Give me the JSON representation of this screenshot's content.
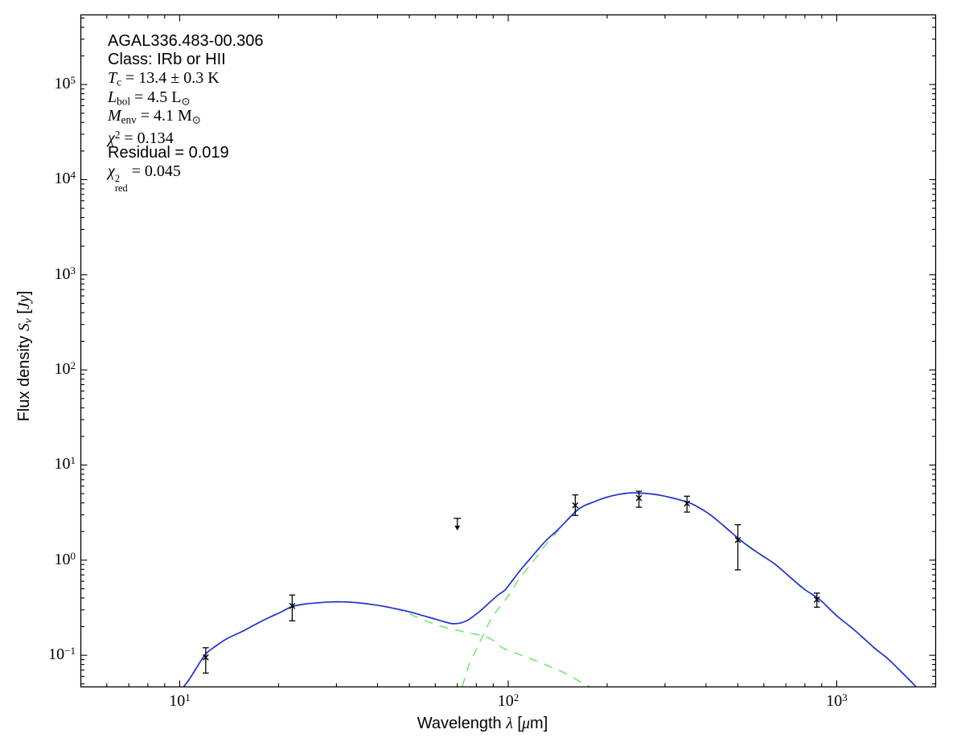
{
  "figure": {
    "background": "#ffffff",
    "frame_color": "#000000"
  },
  "colors": {
    "model_total": "#2130d2",
    "model_components": "#70e56e",
    "data_points": "#000000"
  },
  "annotation": {
    "lines": [
      {
        "name": "source-name",
        "segments": [
          {
            "t": "AGAL336.483-00.306",
            "f": "s"
          }
        ]
      },
      {
        "name": "source-class",
        "segments": [
          {
            "t": "Class: IRb or HII",
            "f": "s"
          }
        ]
      },
      {
        "name": "cold-temperature",
        "segments": [
          {
            "t": "T",
            "f": "i"
          },
          {
            "t": "c",
            "f": "rsub"
          },
          {
            "t": " = 13.4 ± 0.3 K",
            "f": "r"
          }
        ]
      },
      {
        "name": "bolometric-luminosity",
        "segments": [
          {
            "t": "L",
            "f": "i"
          },
          {
            "t": "bol",
            "f": "rsub"
          },
          {
            "t": " = 4.5 L",
            "f": "r"
          },
          {
            "t": "⊙",
            "f": "rsub"
          }
        ]
      },
      {
        "name": "envelope-mass",
        "segments": [
          {
            "t": "M",
            "f": "i"
          },
          {
            "t": "env",
            "f": "rsub"
          },
          {
            "t": " = 4.1 M",
            "f": "r"
          },
          {
            "t": "⊙",
            "f": "rsub"
          }
        ]
      },
      {
        "name": "chi-squared",
        "segments": [
          {
            "t": "χ",
            "f": "i"
          },
          {
            "t": "2",
            "f": "rsup"
          },
          {
            "t": " = 0.134",
            "f": "r"
          }
        ]
      },
      {
        "name": "residual",
        "segments": [
          {
            "t": "Residual = 0.019",
            "f": "s"
          }
        ]
      },
      {
        "name": "reduced-chi-squared",
        "segments": [
          {
            "t": "χ",
            "f": "i"
          },
          {
            "f": "stack",
            "sup": "2",
            "sub": "red"
          },
          {
            "t": " = 0.045",
            "f": "r"
          }
        ]
      }
    ]
  },
  "axis_labels": {
    "x_segments": [
      {
        "t": "Wavelength ",
        "f": "s"
      },
      {
        "t": "λ",
        "f": "i"
      },
      {
        "t": " [",
        "f": "s"
      },
      {
        "t": "μ",
        "f": "i"
      },
      {
        "t": "m]",
        "f": "s"
      }
    ],
    "y_segments": [
      {
        "t": "Flux density ",
        "f": "s"
      },
      {
        "t": "S",
        "f": "i"
      },
      {
        "t": "ν",
        "f": "isub"
      },
      {
        "t": " [",
        "f": "s"
      },
      {
        "t": "Jy",
        "f": "i"
      },
      {
        "t": "]",
        "f": "s"
      }
    ]
  },
  "chart_data": {
    "type": "line",
    "xscale": "log",
    "yscale": "log",
    "xlabel": "Wavelength λ [μm]",
    "ylabel": "Flux density Sν [Jy]",
    "xlim": [
      5,
      2000
    ],
    "ylim": [
      0.0465,
      540000
    ],
    "grid": false,
    "legend": "none",
    "xticks": [
      {
        "v": 10,
        "exp": "1"
      },
      {
        "v": 100,
        "exp": "2"
      },
      {
        "v": 1000,
        "exp": "3"
      }
    ],
    "yticks": [
      {
        "v": 0.1,
        "exp": "−1"
      },
      {
        "v": 1,
        "exp": "0"
      },
      {
        "v": 10,
        "exp": "1"
      },
      {
        "v": 100,
        "exp": "2"
      },
      {
        "v": 1000,
        "exp": "3"
      },
      {
        "v": 10000,
        "exp": "4"
      },
      {
        "v": 100000,
        "exp": "5"
      }
    ],
    "fit_parameters": {
      "source": "AGAL336.483-00.306",
      "class": "IRb or HII",
      "T_c_K": "13.4 ± 0.3",
      "L_bol_Lsun": 4.5,
      "M_env_Msun": 4.1,
      "chi2": 0.134,
      "residual": 0.019,
      "chi2_red": 0.045
    },
    "data_points": [
      {
        "wavelength_um": 12,
        "flux_jy": 0.095,
        "flux_lo": 0.065,
        "flux_hi": 0.12,
        "upper_limit": false
      },
      {
        "wavelength_um": 22,
        "flux_jy": 0.33,
        "flux_lo": 0.23,
        "flux_hi": 0.43,
        "upper_limit": false
      },
      {
        "wavelength_um": 70,
        "flux_jy": 2.75,
        "flux_lo": null,
        "flux_hi": null,
        "upper_limit": true
      },
      {
        "wavelength_um": 160,
        "flux_jy": 3.77,
        "flux_lo": 2.95,
        "flux_hi": 4.85,
        "upper_limit": false
      },
      {
        "wavelength_um": 250,
        "flux_jy": 4.5,
        "flux_lo": 3.6,
        "flux_hi": 5.3,
        "upper_limit": false
      },
      {
        "wavelength_um": 350,
        "flux_jy": 3.95,
        "flux_lo": 3.2,
        "flux_hi": 4.7,
        "upper_limit": false
      },
      {
        "wavelength_um": 500,
        "flux_jy": 1.63,
        "flux_lo": 0.79,
        "flux_hi": 2.36,
        "upper_limit": false
      },
      {
        "wavelength_um": 870,
        "flux_jy": 0.385,
        "flux_lo": 0.32,
        "flux_hi": 0.45,
        "upper_limit": false
      }
    ],
    "series": [
      {
        "name": "model-total",
        "style": "solid",
        "color": "#2130d2",
        "points": [
          [
            10.3,
            0.047
          ],
          [
            10.7,
            0.056
          ],
          [
            11.2,
            0.072
          ],
          [
            12,
            0.103
          ],
          [
            13,
            0.128
          ],
          [
            14,
            0.151
          ],
          [
            15.5,
            0.178
          ],
          [
            17,
            0.211
          ],
          [
            18.5,
            0.245
          ],
          [
            20,
            0.277
          ],
          [
            22,
            0.325
          ],
          [
            24,
            0.345
          ],
          [
            26.5,
            0.357
          ],
          [
            29,
            0.364
          ],
          [
            32,
            0.364
          ],
          [
            35,
            0.356
          ],
          [
            38,
            0.344
          ],
          [
            42,
            0.326
          ],
          [
            46,
            0.306
          ],
          [
            50,
            0.286
          ],
          [
            54,
            0.266
          ],
          [
            58,
            0.248
          ],
          [
            62,
            0.232
          ],
          [
            67,
            0.216
          ],
          [
            71,
            0.217
          ],
          [
            75,
            0.232
          ],
          [
            79,
            0.263
          ],
          [
            83,
            0.301
          ],
          [
            88,
            0.362
          ],
          [
            93,
            0.428
          ],
          [
            98,
            0.49
          ],
          [
            104,
            0.64
          ],
          [
            110,
            0.82
          ],
          [
            117,
            1.05
          ],
          [
            124,
            1.33
          ],
          [
            132,
            1.68
          ],
          [
            141,
            2.06
          ],
          [
            151,
            2.62
          ],
          [
            161,
            3.28
          ],
          [
            170,
            3.72
          ],
          [
            181,
            4.06
          ],
          [
            194,
            4.45
          ],
          [
            208,
            4.76
          ],
          [
            222,
            4.98
          ],
          [
            238,
            5.1
          ],
          [
            255,
            5.06
          ],
          [
            273,
            4.96
          ],
          [
            293,
            4.78
          ],
          [
            320,
            4.46
          ],
          [
            358,
            3.98
          ],
          [
            392,
            3.36
          ],
          [
            414,
            2.96
          ],
          [
            452,
            2.31
          ],
          [
            508,
            1.63
          ],
          [
            570,
            1.22
          ],
          [
            645,
            0.92
          ],
          [
            722,
            0.66
          ],
          [
            800,
            0.49
          ],
          [
            888,
            0.385
          ],
          [
            1000,
            0.26
          ],
          [
            1130,
            0.185
          ],
          [
            1300,
            0.12
          ],
          [
            1430,
            0.092
          ],
          [
            1600,
            0.063
          ],
          [
            1740,
            0.047
          ]
        ]
      },
      {
        "name": "model-warm-component",
        "style": "dashed",
        "color": "#70e56e",
        "points": [
          [
            10.3,
            0.047
          ],
          [
            10.7,
            0.056
          ],
          [
            11.2,
            0.072
          ],
          [
            12,
            0.103
          ],
          [
            13,
            0.128
          ],
          [
            14,
            0.151
          ],
          [
            15.5,
            0.178
          ],
          [
            17,
            0.211
          ],
          [
            18.5,
            0.245
          ],
          [
            20,
            0.277
          ],
          [
            22,
            0.325
          ],
          [
            24,
            0.345
          ],
          [
            26.5,
            0.357
          ],
          [
            29,
            0.364
          ],
          [
            32,
            0.364
          ],
          [
            35,
            0.356
          ],
          [
            38,
            0.344
          ],
          [
            42,
            0.326
          ],
          [
            46,
            0.305
          ],
          [
            50,
            0.272
          ],
          [
            54,
            0.243
          ],
          [
            58,
            0.22
          ],
          [
            63,
            0.2
          ],
          [
            70,
            0.183
          ],
          [
            77,
            0.17
          ],
          [
            84,
            0.16
          ],
          [
            90,
            0.143
          ],
          [
            96,
            0.12
          ],
          [
            105,
            0.106
          ],
          [
            114,
            0.095
          ],
          [
            123,
            0.086
          ],
          [
            134,
            0.076
          ],
          [
            146,
            0.067
          ],
          [
            158,
            0.058
          ],
          [
            168,
            0.051
          ],
          [
            177,
            0.047
          ]
        ]
      },
      {
        "name": "model-cold-component",
        "style": "dashed",
        "color": "#70e56e",
        "points": [
          [
            72.5,
            0.047
          ],
          [
            76,
            0.08
          ],
          [
            80,
            0.115
          ],
          [
            84,
            0.165
          ],
          [
            88,
            0.23
          ],
          [
            92,
            0.29
          ],
          [
            96,
            0.35
          ],
          [
            100,
            0.42
          ],
          [
            105,
            0.55
          ],
          [
            110,
            0.69
          ],
          [
            116,
            0.87
          ],
          [
            122,
            1.08
          ],
          [
            130,
            1.45
          ],
          [
            138,
            1.83
          ],
          [
            146,
            2.3
          ],
          [
            153,
            2.8
          ],
          [
            162,
            3.4
          ],
          [
            170,
            3.7
          ],
          [
            181,
            4.05
          ],
          [
            194,
            4.44
          ],
          [
            208,
            4.75
          ],
          [
            222,
            4.97
          ],
          [
            238,
            5.09
          ],
          [
            255,
            5.05
          ],
          [
            273,
            4.95
          ],
          [
            293,
            4.77
          ],
          [
            320,
            4.45
          ],
          [
            358,
            3.97
          ],
          [
            392,
            3.35
          ],
          [
            414,
            2.95
          ],
          [
            452,
            2.3
          ],
          [
            508,
            1.62
          ],
          [
            570,
            1.21
          ],
          [
            645,
            0.915
          ],
          [
            722,
            0.657
          ],
          [
            800,
            0.488
          ],
          [
            888,
            0.383
          ],
          [
            1000,
            0.259
          ],
          [
            1130,
            0.184
          ],
          [
            1300,
            0.119
          ],
          [
            1430,
            0.0915
          ],
          [
            1600,
            0.0625
          ],
          [
            1740,
            0.047
          ]
        ]
      }
    ]
  }
}
